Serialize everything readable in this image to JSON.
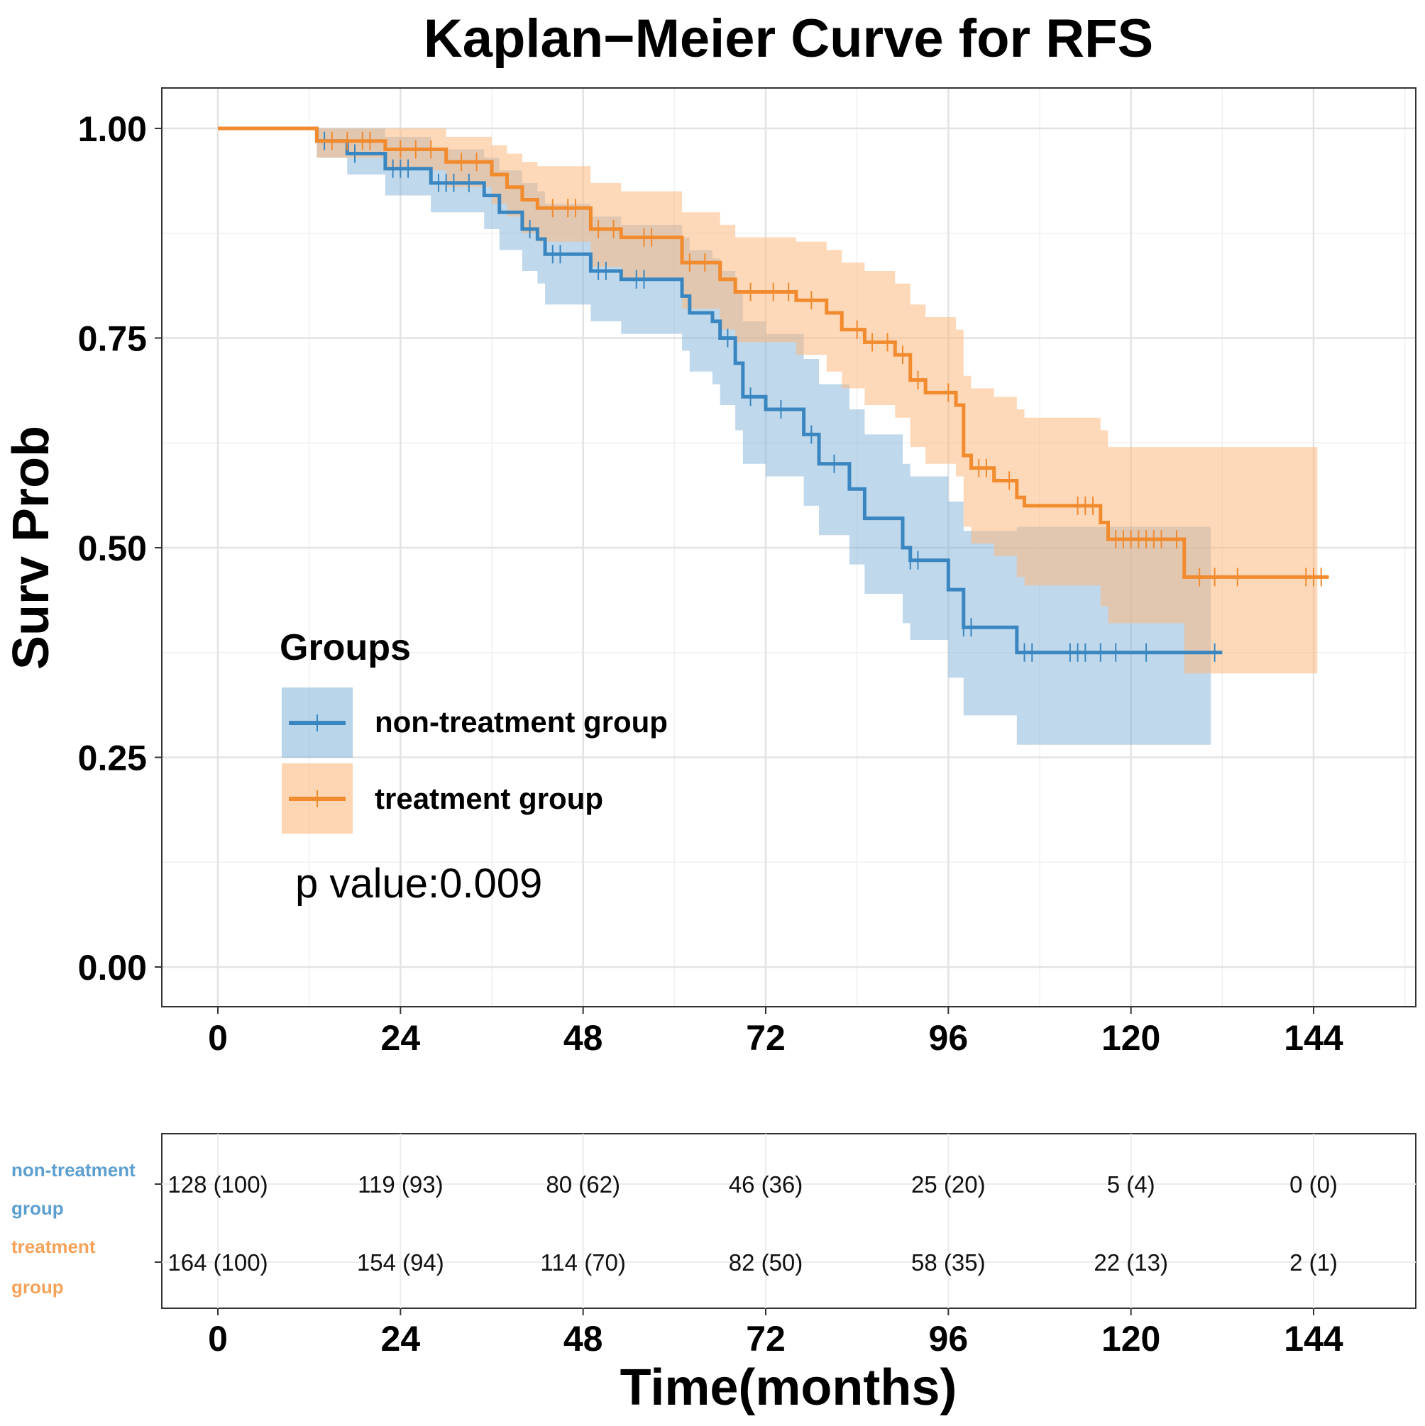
{
  "chart_data": {
    "type": "line",
    "subtype": "kaplan-meier",
    "title": "Kaplan−Meier Curve for RFS",
    "xlabel": "Time(months)",
    "ylabel": "Surv Prob",
    "xlim": [
      -7,
      157
    ],
    "ylim": [
      -0.05,
      1.05
    ],
    "xticks": [
      0,
      24,
      48,
      72,
      96,
      120,
      144
    ],
    "xtick_labels": [
      "0",
      "24",
      "48",
      "72",
      "96",
      "120",
      "144"
    ],
    "yticks": [
      0,
      0.25,
      0.5,
      0.75,
      1.0
    ],
    "ytick_labels": [
      "0.00",
      "0.25",
      "0.50",
      "0.75",
      "1.00"
    ],
    "grid": true,
    "legend": {
      "title": "Groups",
      "position": "bottom-left inside"
    },
    "annotation": "p value:0.009",
    "series": [
      {
        "name": "non-treatment group",
        "color": "#3a86c0",
        "fill": "#7fb2d9",
        "time": [
          0,
          13,
          17,
          22,
          28,
          35,
          37,
          40,
          42,
          43,
          49,
          53,
          61,
          62,
          65,
          66,
          68,
          69,
          72,
          77,
          79,
          83,
          85,
          90,
          91,
          96,
          98,
          105
        ],
        "surv": [
          1,
          0.985,
          0.97,
          0.952,
          0.935,
          0.92,
          0.9,
          0.88,
          0.868,
          0.85,
          0.83,
          0.82,
          0.8,
          0.78,
          0.77,
          0.75,
          0.72,
          0.68,
          0.665,
          0.635,
          0.6,
          0.57,
          0.535,
          0.5,
          0.485,
          0.45,
          0.405,
          0.375
        ],
        "lower": [
          1,
          0.965,
          0.945,
          0.92,
          0.9,
          0.88,
          0.855,
          0.83,
          0.815,
          0.79,
          0.77,
          0.755,
          0.735,
          0.71,
          0.695,
          0.67,
          0.64,
          0.6,
          0.585,
          0.55,
          0.515,
          0.48,
          0.445,
          0.41,
          0.39,
          0.345,
          0.3,
          0.265
        ],
        "upper": [
          1,
          1,
          1,
          0.99,
          0.975,
          0.965,
          0.95,
          0.935,
          0.925,
          0.91,
          0.895,
          0.885,
          0.87,
          0.855,
          0.845,
          0.83,
          0.805,
          0.77,
          0.755,
          0.725,
          0.695,
          0.665,
          0.635,
          0.6,
          0.585,
          0.555,
          0.52,
          0.525
        ],
        "end": 132,
        "censor": [
          14,
          18,
          23,
          24,
          25,
          29,
          30,
          31,
          33,
          41,
          44,
          45,
          50,
          51,
          55,
          56,
          67,
          70,
          74,
          78,
          81,
          91,
          92,
          98,
          99,
          106,
          107,
          112,
          113,
          114,
          116,
          118,
          122,
          131
        ]
      },
      {
        "name": "treatment group",
        "color": "#f28a2e",
        "fill": "#fdba80",
        "time": [
          0,
          13,
          22,
          30,
          36,
          38,
          40,
          42,
          49,
          53,
          61,
          66,
          68,
          76,
          80,
          82,
          85,
          89,
          91,
          93,
          97,
          98,
          99,
          102,
          105,
          106,
          116,
          117,
          127
        ],
        "surv": [
          1,
          0.985,
          0.975,
          0.96,
          0.945,
          0.93,
          0.915,
          0.905,
          0.88,
          0.87,
          0.84,
          0.82,
          0.805,
          0.795,
          0.78,
          0.76,
          0.745,
          0.73,
          0.7,
          0.685,
          0.67,
          0.61,
          0.595,
          0.58,
          0.56,
          0.55,
          0.53,
          0.51,
          0.465
        ],
        "lower": [
          1,
          0.965,
          0.95,
          0.93,
          0.91,
          0.895,
          0.875,
          0.865,
          0.835,
          0.82,
          0.785,
          0.76,
          0.745,
          0.73,
          0.71,
          0.69,
          0.67,
          0.655,
          0.62,
          0.6,
          0.585,
          0.525,
          0.505,
          0.49,
          0.465,
          0.455,
          0.43,
          0.41,
          0.35
        ],
        "upper": [
          1,
          1,
          1,
          0.99,
          0.98,
          0.97,
          0.96,
          0.955,
          0.935,
          0.925,
          0.9,
          0.885,
          0.87,
          0.865,
          0.855,
          0.84,
          0.83,
          0.815,
          0.79,
          0.775,
          0.76,
          0.705,
          0.69,
          0.68,
          0.665,
          0.655,
          0.64,
          0.62,
          0.62
        ],
        "end": 146,
        "censor": [
          15,
          17,
          19,
          20,
          24,
          26,
          28,
          32,
          34,
          44,
          46,
          47,
          50,
          52,
          56,
          57,
          62,
          64,
          70,
          73,
          75,
          78,
          84,
          86,
          88,
          90,
          92,
          96,
          100,
          101,
          104,
          113,
          114,
          115,
          118,
          119,
          120,
          121,
          122,
          123,
          124,
          126,
          129,
          131,
          134,
          143,
          144,
          145
        ]
      }
    ],
    "risk_table": {
      "rows": [
        {
          "label_lines": [
            "non-treatment",
            "group"
          ],
          "color": "#5b9fd0",
          "values": [
            "128 (100)",
            "119 (93)",
            "80 (62)",
            "46 (36)",
            "25 (20)",
            "5 (4)",
            "0 (0)"
          ]
        },
        {
          "label_lines": [
            "treatment",
            "group"
          ],
          "color": "#f5a25a",
          "values": [
            "164 (100)",
            "154 (94)",
            "114 (70)",
            "82 (50)",
            "58 (35)",
            "22 (13)",
            "2 (1)"
          ]
        }
      ]
    }
  }
}
